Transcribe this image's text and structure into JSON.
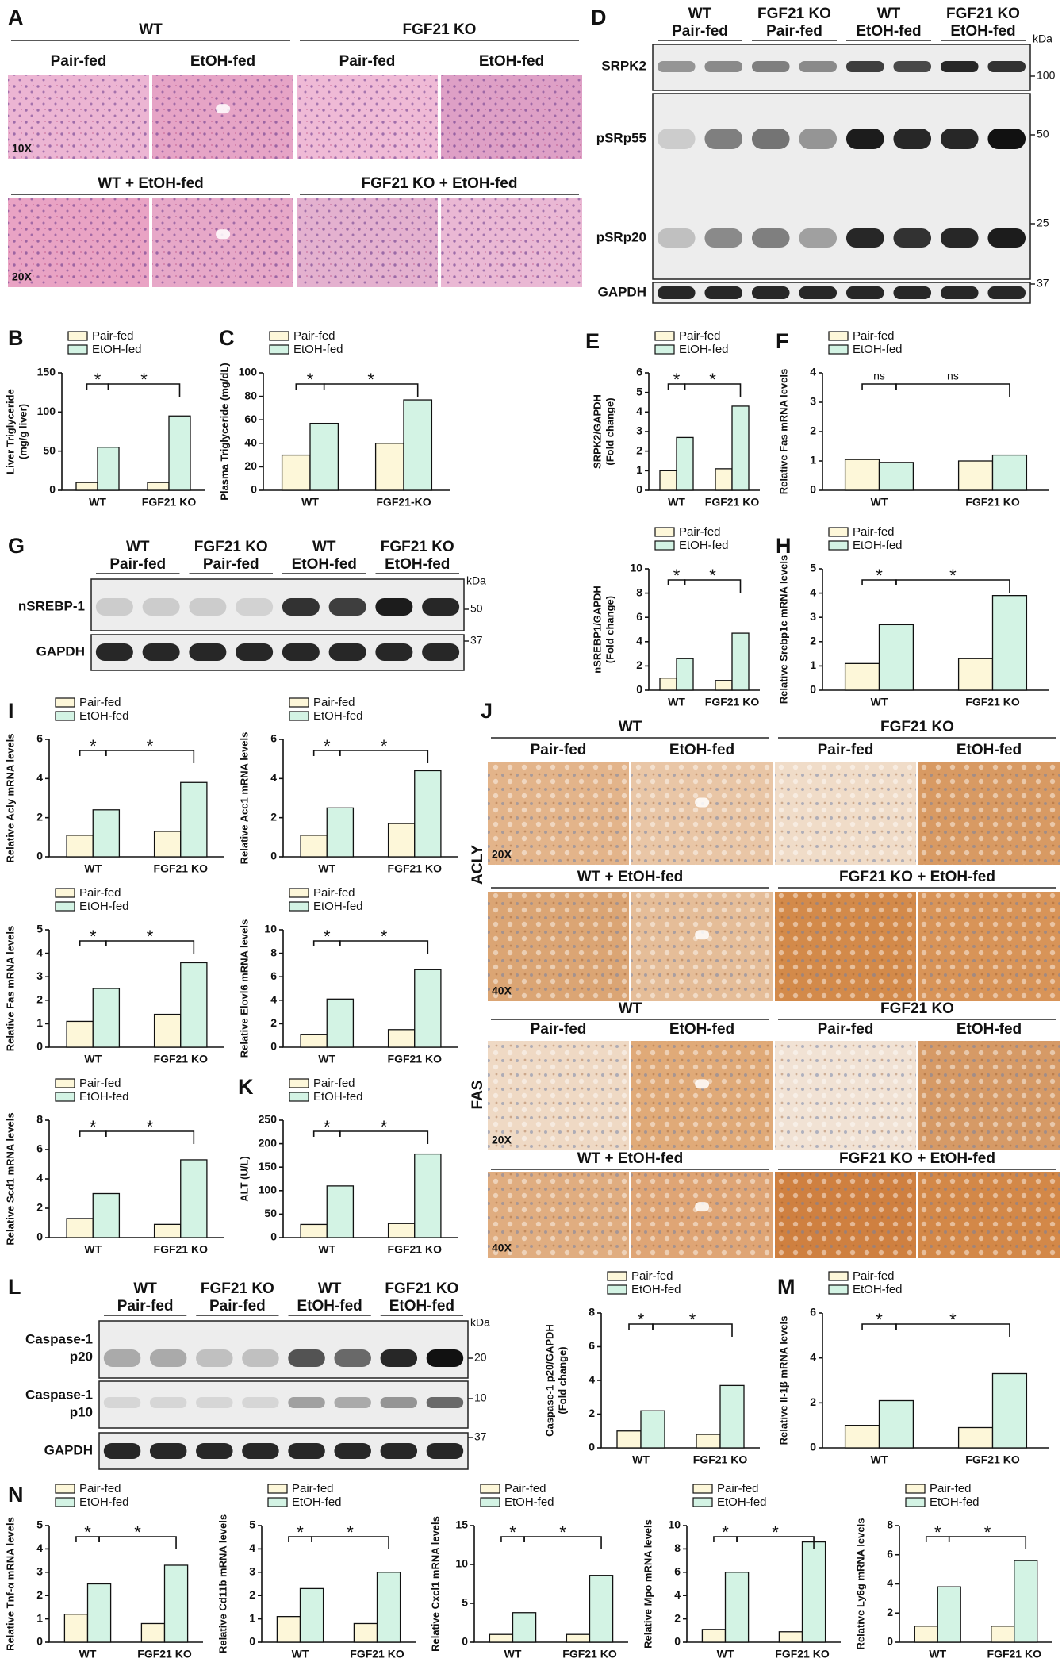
{
  "panel_letters": [
    "A",
    "B",
    "C",
    "D",
    "E",
    "F",
    "G",
    "H",
    "I",
    "J",
    "K",
    "L",
    "M",
    "N"
  ],
  "histology_A": {
    "groups": [
      "WT",
      "FGF21 KO"
    ],
    "columns": [
      "Pair-fed",
      "EtOH-fed",
      "Pair-fed",
      "EtOH-fed"
    ],
    "magnification_1": "10X",
    "row2": [
      "WT + EtOH-fed",
      "FGF21 KO + EtOH-fed"
    ],
    "magnification_2": "20X"
  },
  "histology_J": {
    "stains": [
      {
        "name": "ACLY",
        "groups": [
          "WT",
          "FGF21 KO"
        ],
        "columns": [
          "Pair-fed",
          "EtOH-fed",
          "Pair-fed",
          "EtOH-fed"
        ],
        "magnification_1": "20X",
        "row2": [
          "WT + EtOH-fed",
          "FGF21 KO + EtOH-fed"
        ],
        "magnification_2": "40X"
      },
      {
        "name": "FAS",
        "groups": [
          "WT",
          "FGF21 KO"
        ],
        "columns": [
          "Pair-fed",
          "EtOH-fed",
          "Pair-fed",
          "EtOH-fed"
        ],
        "magnification_1": "20X",
        "row2": [
          "WT + EtOH-fed",
          "FGF21 KO + EtOH-fed"
        ],
        "magnification_2": "40X"
      }
    ]
  },
  "blot_D": {
    "groups": [
      [
        "WT",
        "Pair-fed"
      ],
      [
        "FGF21 KO",
        "Pair-fed"
      ],
      [
        "WT",
        "EtOH-fed"
      ],
      [
        "FGF21 KO",
        "EtOH-fed"
      ]
    ],
    "rows": [
      [
        "SRPK2"
      ],
      [
        "pSRp55"
      ],
      [
        "pSRp20"
      ],
      [
        "GAPDH"
      ]
    ],
    "unit": "kDa",
    "markers": [
      "100",
      "50",
      "25",
      "37"
    ]
  },
  "blot_G": {
    "groups": [
      [
        "WT",
        "Pair-fed"
      ],
      [
        "FGF21 KO",
        "Pair-fed"
      ],
      [
        "WT",
        "EtOH-fed"
      ],
      [
        "FGF21 KO",
        "EtOH-fed"
      ]
    ],
    "rows": [
      [
        "nSREBP-1"
      ],
      [
        "GAPDH"
      ]
    ],
    "unit": "kDa",
    "markers": [
      "50",
      "37"
    ]
  },
  "blot_L": {
    "groups": [
      [
        "WT",
        "Pair-fed"
      ],
      [
        "FGF21 KO",
        "Pair-fed"
      ],
      [
        "WT",
        "EtOH-fed"
      ],
      [
        "FGF21 KO",
        "EtOH-fed"
      ]
    ],
    "rows": [
      [
        "Caspase-1",
        "p20"
      ],
      [
        "Caspase-1",
        "p10"
      ],
      [
        "GAPDH"
      ]
    ],
    "unit": "kDa",
    "markers": [
      "20",
      "10",
      "37"
    ]
  },
  "chart_data": [
    {
      "type": "bar",
      "ylabel": [
        "Liver Triglyceride",
        "(mg/g liver)"
      ],
      "categories": [
        "WT",
        "FGF21 KO"
      ],
      "series": [
        {
          "name": "Pair-fed",
          "color": "#fdf7d9",
          "values": [
            10,
            10
          ]
        },
        {
          "name": "EtOH-fed",
          "color": "#d3f3e4",
          "values": [
            55,
            95
          ]
        }
      ],
      "ylim": [
        0,
        150
      ],
      "yticks": [
        0,
        50,
        100,
        150
      ],
      "significance": [
        "*",
        "*"
      ]
    },
    {
      "type": "bar",
      "ylabel": [
        "Plasma Triglyceride (mg/dL)"
      ],
      "categories": [
        "WT",
        "FGF21-KO"
      ],
      "series": [
        {
          "name": "Pair-fed",
          "color": "#fdf7d9",
          "values": [
            30,
            40
          ]
        },
        {
          "name": "EtOH-fed",
          "color": "#d3f3e4",
          "values": [
            57,
            77
          ]
        }
      ],
      "ylim": [
        0,
        100
      ],
      "yticks": [
        0,
        20,
        40,
        60,
        80,
        100
      ],
      "significance": [
        "*",
        "*"
      ]
    },
    {
      "type": "bar",
      "ylabel": [
        "SRPK2/GAPDH",
        "(Fold change)"
      ],
      "categories": [
        "WT",
        "FGF21 KO"
      ],
      "series": [
        {
          "name": "Pair-fed",
          "color": "#fdf7d9",
          "values": [
            1.0,
            1.1
          ]
        },
        {
          "name": "EtOH-fed",
          "color": "#d3f3e4",
          "values": [
            2.7,
            4.3
          ]
        }
      ],
      "ylim": [
        0,
        6
      ],
      "yticks": [
        0,
        1,
        2,
        3,
        4,
        5,
        6
      ],
      "significance": [
        "*",
        "*"
      ]
    },
    {
      "type": "bar",
      "ylabel": [
        "Relative Fas mRNA levels"
      ],
      "categories": [
        "WT",
        "FGF21 KO"
      ],
      "series": [
        {
          "name": "Pair-fed",
          "color": "#fdf7d9",
          "values": [
            1.05,
            1.0
          ]
        },
        {
          "name": "EtOH-fed",
          "color": "#d3f3e4",
          "values": [
            0.95,
            1.2
          ]
        }
      ],
      "ylim": [
        0,
        4
      ],
      "yticks": [
        0,
        1,
        2,
        3,
        4
      ],
      "significance": [
        "ns",
        "ns"
      ]
    },
    {
      "type": "bar",
      "ylabel": [
        "nSREBP1/GAPDH",
        "(Fold change)"
      ],
      "categories": [
        "WT",
        "FGF21 KO"
      ],
      "series": [
        {
          "name": "Pair-fed",
          "color": "#fdf7d9",
          "values": [
            1.0,
            0.8
          ]
        },
        {
          "name": "EtOH-fed",
          "color": "#d3f3e4",
          "values": [
            2.6,
            4.7
          ]
        }
      ],
      "ylim": [
        0,
        10
      ],
      "yticks": [
        0,
        2,
        4,
        6,
        8,
        10
      ],
      "significance": [
        "*",
        "*"
      ]
    },
    {
      "type": "bar",
      "ylabel": [
        "Relative Srebp1c mRNA levels"
      ],
      "categories": [
        "WT",
        "FGF21 KO"
      ],
      "series": [
        {
          "name": "Pair-fed",
          "color": "#fdf7d9",
          "values": [
            1.1,
            1.3
          ]
        },
        {
          "name": "EtOH-fed",
          "color": "#d3f3e4",
          "values": [
            2.7,
            3.9
          ]
        }
      ],
      "ylim": [
        0,
        5
      ],
      "yticks": [
        0,
        1,
        2,
        3,
        4,
        5
      ],
      "significance": [
        "*",
        "*"
      ]
    },
    {
      "type": "bar",
      "ylabel": [
        "Relative Acly mRNA levels"
      ],
      "categories": [
        "WT",
        "FGF21 KO"
      ],
      "series": [
        {
          "name": "Pair-fed",
          "color": "#fdf7d9",
          "values": [
            1.1,
            1.3
          ]
        },
        {
          "name": "EtOH-fed",
          "color": "#d3f3e4",
          "values": [
            2.4,
            3.8
          ]
        }
      ],
      "ylim": [
        0,
        6
      ],
      "yticks": [
        0,
        2,
        4,
        6
      ],
      "significance": [
        "*",
        "*"
      ]
    },
    {
      "type": "bar",
      "ylabel": [
        "Relative Acc1 mRNA levels"
      ],
      "categories": [
        "WT",
        "FGF21 KO"
      ],
      "series": [
        {
          "name": "Pair-fed",
          "color": "#fdf7d9",
          "values": [
            1.1,
            1.7
          ]
        },
        {
          "name": "EtOH-fed",
          "color": "#d3f3e4",
          "values": [
            2.5,
            4.4
          ]
        }
      ],
      "ylim": [
        0,
        6
      ],
      "yticks": [
        0,
        2,
        4,
        6
      ],
      "significance": [
        "*",
        "*"
      ]
    },
    {
      "type": "bar",
      "ylabel": [
        "Relative Fas mRNA levels"
      ],
      "categories": [
        "WT",
        "FGF21 KO"
      ],
      "series": [
        {
          "name": "Pair-fed",
          "color": "#fdf7d9",
          "values": [
            1.1,
            1.4
          ]
        },
        {
          "name": "EtOH-fed",
          "color": "#d3f3e4",
          "values": [
            2.5,
            3.6
          ]
        }
      ],
      "ylim": [
        0,
        5
      ],
      "yticks": [
        0,
        1,
        2,
        3,
        4,
        5
      ],
      "significance": [
        "*",
        "*"
      ]
    },
    {
      "type": "bar",
      "ylabel": [
        "Relative Elovl6 mRNA levels"
      ],
      "categories": [
        "WT",
        "FGF21 KO"
      ],
      "series": [
        {
          "name": "Pair-fed",
          "color": "#fdf7d9",
          "values": [
            1.1,
            1.5
          ]
        },
        {
          "name": "EtOH-fed",
          "color": "#d3f3e4",
          "values": [
            4.1,
            6.6
          ]
        }
      ],
      "ylim": [
        0,
        10
      ],
      "yticks": [
        0,
        2,
        4,
        6,
        8,
        10
      ],
      "significance": [
        "*",
        "*"
      ]
    },
    {
      "type": "bar",
      "ylabel": [
        "Relative Scd1 mRNA levels"
      ],
      "categories": [
        "WT",
        "FGF21 KO"
      ],
      "series": [
        {
          "name": "Pair-fed",
          "color": "#fdf7d9",
          "values": [
            1.3,
            0.9
          ]
        },
        {
          "name": "EtOH-fed",
          "color": "#d3f3e4",
          "values": [
            3.0,
            5.3
          ]
        }
      ],
      "ylim": [
        0,
        8
      ],
      "yticks": [
        0,
        2,
        4,
        6,
        8
      ],
      "significance": [
        "*",
        "*"
      ]
    },
    {
      "type": "bar",
      "ylabel": [
        "ALT (U/L)"
      ],
      "categories": [
        "WT",
        "FGF21 KO"
      ],
      "series": [
        {
          "name": "Pair-fed",
          "color": "#fdf7d9",
          "values": [
            28,
            30
          ]
        },
        {
          "name": "EtOH-fed",
          "color": "#d3f3e4",
          "values": [
            110,
            178
          ]
        }
      ],
      "ylim": [
        0,
        250
      ],
      "yticks": [
        0,
        50,
        100,
        150,
        200,
        250
      ],
      "significance": [
        "*",
        "*"
      ]
    },
    {
      "type": "bar",
      "ylabel": [
        "Caspase-1 p20/GAPDH",
        "(Fold change)"
      ],
      "categories": [
        "WT",
        "FGF21 KO"
      ],
      "series": [
        {
          "name": "Pair-fed",
          "color": "#fdf7d9",
          "values": [
            1.0,
            0.8
          ]
        },
        {
          "name": "EtOH-fed",
          "color": "#d3f3e4",
          "values": [
            2.2,
            3.7
          ]
        }
      ],
      "ylim": [
        0,
        8
      ],
      "yticks": [
        0,
        2,
        4,
        6,
        8
      ],
      "significance": [
        "*",
        "*"
      ]
    },
    {
      "type": "bar",
      "ylabel": [
        "Relative Il-1β mRNA levels"
      ],
      "categories": [
        "WT",
        "FGF21 KO"
      ],
      "series": [
        {
          "name": "Pair-fed",
          "color": "#fdf7d9",
          "values": [
            1.0,
            0.9
          ]
        },
        {
          "name": "EtOH-fed",
          "color": "#d3f3e4",
          "values": [
            2.1,
            3.3
          ]
        }
      ],
      "ylim": [
        0,
        6
      ],
      "yticks": [
        0,
        2,
        4,
        6
      ],
      "significance": [
        "*",
        "*"
      ]
    },
    {
      "type": "bar",
      "ylabel": [
        "Relative Tnf-α mRNA levels"
      ],
      "categories": [
        "WT",
        "FGF21 KO"
      ],
      "series": [
        {
          "name": "Pair-fed",
          "color": "#fdf7d9",
          "values": [
            1.2,
            0.8
          ]
        },
        {
          "name": "EtOH-fed",
          "color": "#d3f3e4",
          "values": [
            2.5,
            3.3
          ]
        }
      ],
      "ylim": [
        0,
        5
      ],
      "yticks": [
        0,
        1,
        2,
        3,
        4,
        5
      ],
      "significance": [
        "*",
        "*"
      ]
    },
    {
      "type": "bar",
      "ylabel": [
        "Relative Cd11b mRNA levels"
      ],
      "categories": [
        "WT",
        "FGF21 KO"
      ],
      "series": [
        {
          "name": "Pair-fed",
          "color": "#fdf7d9",
          "values": [
            1.1,
            0.8
          ]
        },
        {
          "name": "EtOH-fed",
          "color": "#d3f3e4",
          "values": [
            2.3,
            3.0
          ]
        }
      ],
      "ylim": [
        0,
        5
      ],
      "yticks": [
        0,
        1,
        2,
        3,
        4,
        5
      ],
      "significance": [
        "*",
        "*"
      ]
    },
    {
      "type": "bar",
      "ylabel": [
        "Relative Cxcl1 mRNA levels"
      ],
      "categories": [
        "WT",
        "FGF21 KO"
      ],
      "series": [
        {
          "name": "Pair-fed",
          "color": "#fdf7d9",
          "values": [
            1.0,
            1.0
          ]
        },
        {
          "name": "EtOH-fed",
          "color": "#d3f3e4",
          "values": [
            3.8,
            8.6
          ]
        }
      ],
      "ylim": [
        0,
        15
      ],
      "yticks": [
        0,
        5,
        10,
        15
      ],
      "significance": [
        "*",
        "*"
      ]
    },
    {
      "type": "bar",
      "ylabel": [
        "Relative Mpo mRNA levels"
      ],
      "categories": [
        "WT",
        "FGF21 KO"
      ],
      "series": [
        {
          "name": "Pair-fed",
          "color": "#fdf7d9",
          "values": [
            1.1,
            0.9
          ]
        },
        {
          "name": "EtOH-fed",
          "color": "#d3f3e4",
          "values": [
            6.0,
            8.6
          ]
        }
      ],
      "ylim": [
        0,
        10
      ],
      "yticks": [
        0,
        2,
        4,
        6,
        8,
        10
      ],
      "significance": [
        "*",
        "*"
      ]
    },
    {
      "type": "bar",
      "ylabel": [
        "Relative Ly6g mRNA levels"
      ],
      "categories": [
        "WT",
        "FGF21 KO"
      ],
      "series": [
        {
          "name": "Pair-fed",
          "color": "#fdf7d9",
          "values": [
            1.1,
            1.1
          ]
        },
        {
          "name": "EtOH-fed",
          "color": "#d3f3e4",
          "values": [
            3.8,
            5.6
          ]
        }
      ],
      "ylim": [
        0,
        8
      ],
      "yticks": [
        0,
        2,
        4,
        6,
        8
      ],
      "significance": [
        "*",
        "*"
      ]
    }
  ]
}
